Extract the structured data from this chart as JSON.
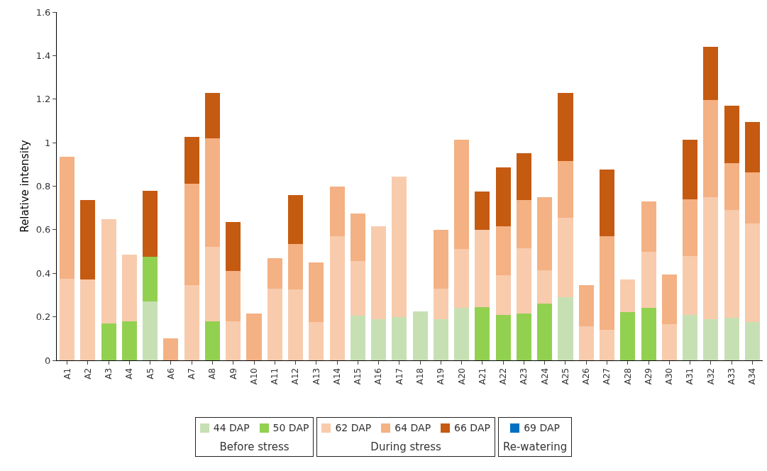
{
  "chart_data": {
    "type": "bar",
    "stacked": true,
    "ylabel": "Relative intensity",
    "ylim": [
      0,
      1.6
    ],
    "yticks": [
      0,
      0.2,
      0.4,
      0.6,
      0.8,
      1,
      1.2,
      1.4,
      1.6
    ],
    "grid": false,
    "legend": "bottom",
    "categories": [
      "A1",
      "A2",
      "A3",
      "A4",
      "A5",
      "A6",
      "A7",
      "A8",
      "A9",
      "A10",
      "A11",
      "A12",
      "A13",
      "A14",
      "A15",
      "A16",
      "A17",
      "A18",
      "A19",
      "A20",
      "A21",
      "A22",
      "A23",
      "A24",
      "A25",
      "A26",
      "A27",
      "A28",
      "A29",
      "A30",
      "A31",
      "A32",
      "A33",
      "A34"
    ],
    "annotations": [
      "Before stress",
      "During stress",
      "Re-watering"
    ],
    "series": [
      {
        "name": "44 DAP",
        "color": "#c6e0b4",
        "values": [
          null,
          null,
          null,
          null,
          0.27,
          null,
          null,
          null,
          null,
          null,
          null,
          null,
          null,
          null,
          0.205,
          0.19,
          0.2,
          0.225,
          0.19,
          0.24,
          null,
          null,
          null,
          null,
          0.29,
          null,
          null,
          null,
          null,
          null,
          0.21,
          0.19,
          0.195,
          0.175
        ]
      },
      {
        "name": "50 DAP",
        "color": "#92d050",
        "values": [
          null,
          null,
          0.17,
          0.18,
          0.205,
          null,
          null,
          0.18,
          null,
          null,
          null,
          null,
          null,
          null,
          null,
          null,
          null,
          null,
          null,
          null,
          0.245,
          0.21,
          0.215,
          0.26,
          null,
          null,
          null,
          0.22,
          0.24,
          null,
          null,
          null,
          null,
          null
        ]
      },
      {
        "name": "62 DAP",
        "color": "#f8cbad",
        "values": [
          0.375,
          0.37,
          0.48,
          0.305,
          null,
          null,
          0.345,
          0.34,
          0.18,
          null,
          0.33,
          0.325,
          0.175,
          0.57,
          0.25,
          0.425,
          0.645,
          null,
          0.14,
          0.27,
          0.355,
          0.18,
          0.3,
          0.155,
          0.365,
          0.155,
          0.14,
          0.15,
          0.26,
          0.165,
          0.27,
          0.56,
          0.495,
          0.455
        ]
      },
      {
        "name": "64 DAP",
        "color": "#f4b183",
        "values": [
          0.56,
          null,
          null,
          null,
          null,
          0.1,
          0.465,
          0.5,
          0.23,
          0.215,
          0.14,
          0.21,
          0.275,
          0.23,
          0.22,
          null,
          null,
          null,
          0.27,
          0.505,
          null,
          0.225,
          0.22,
          0.335,
          0.26,
          0.19,
          0.43,
          null,
          0.23,
          0.23,
          0.26,
          0.445,
          0.215,
          0.235
        ]
      },
      {
        "name": "66 DAP",
        "color": "#c55a11",
        "values": [
          null,
          0.365,
          null,
          null,
          0.305,
          null,
          0.215,
          0.21,
          0.225,
          null,
          null,
          0.225,
          null,
          null,
          null,
          null,
          null,
          null,
          null,
          null,
          0.175,
          0.27,
          0.215,
          null,
          0.315,
          null,
          0.305,
          null,
          null,
          null,
          0.275,
          0.245,
          0.265,
          0.23
        ]
      },
      {
        "name": "69 DAP",
        "color": "#0070c0",
        "values": [
          null,
          null,
          null,
          null,
          null,
          null,
          null,
          null,
          null,
          null,
          null,
          null,
          null,
          null,
          null,
          null,
          null,
          null,
          null,
          null,
          null,
          null,
          null,
          null,
          null,
          null,
          null,
          null,
          null,
          null,
          null,
          null,
          null,
          null
        ]
      }
    ]
  }
}
